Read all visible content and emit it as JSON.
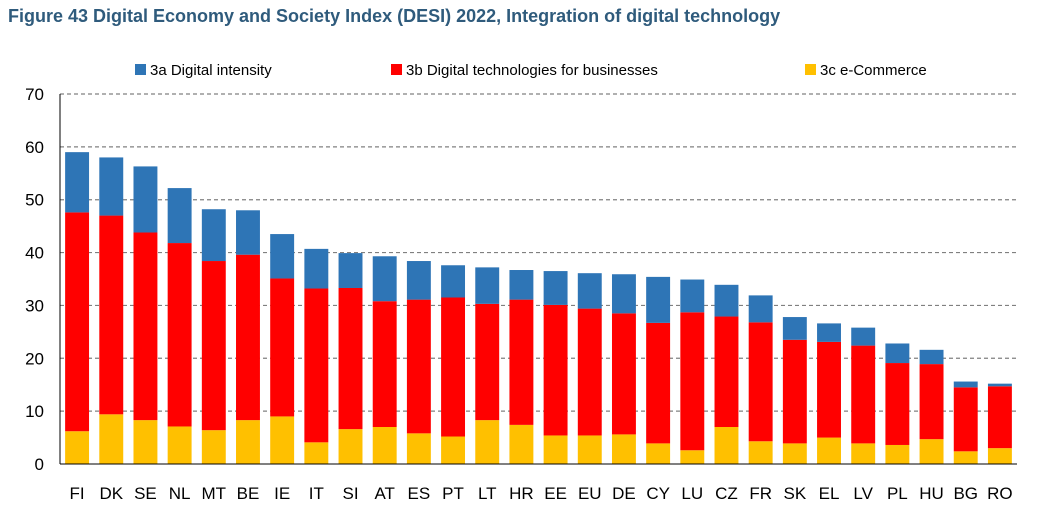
{
  "figure_title": "Figure 43 Digital Economy and Society Index (DESI) 2022, Integration of digital technology",
  "colors": {
    "digital_intensity": "#2E75B6",
    "digital_technologies": "#FF0000",
    "ecommerce": "#FFC000",
    "grid": "#808080",
    "axis": "#000000",
    "title": "#2F5B7C"
  },
  "chart_data": {
    "type": "bar",
    "stacked": true,
    "title": "Figure 43 Digital Economy and Society Index (DESI) 2022, Integration of digital technology",
    "xlabel": "",
    "ylabel": "",
    "ylim": [
      0,
      70
    ],
    "yticks": [
      0,
      10,
      20,
      30,
      40,
      50,
      60,
      70
    ],
    "grid": "horizontal dashed",
    "legend_position": "top",
    "categories": [
      "FI",
      "DK",
      "SE",
      "NL",
      "MT",
      "BE",
      "IE",
      "IT",
      "SI",
      "AT",
      "ES",
      "PT",
      "LT",
      "HR",
      "EE",
      "EU",
      "DE",
      "CY",
      "LU",
      "CZ",
      "FR",
      "SK",
      "EL",
      "LV",
      "PL",
      "HU",
      "BG",
      "RO"
    ],
    "series": [
      {
        "name": "3c e-Commerce",
        "color_key": "ecommerce",
        "values": [
          6.2,
          9.4,
          8.3,
          7.1,
          6.4,
          8.3,
          9.0,
          4.1,
          6.6,
          7.0,
          5.8,
          5.2,
          8.3,
          7.4,
          5.4,
          5.4,
          5.6,
          3.9,
          2.6,
          7.0,
          4.3,
          3.9,
          5.0,
          3.9,
          3.6,
          4.7,
          2.4,
          3.0
        ]
      },
      {
        "name": "3b Digital technologies for businesses",
        "color_key": "digital_technologies",
        "values": [
          41.4,
          37.6,
          35.5,
          34.7,
          32.0,
          31.3,
          26.1,
          29.1,
          26.7,
          23.8,
          25.3,
          26.3,
          22.0,
          23.7,
          24.7,
          24.0,
          22.9,
          22.8,
          26.1,
          20.9,
          22.5,
          19.6,
          18.1,
          18.5,
          15.5,
          14.2,
          12.1,
          11.7
        ]
      },
      {
        "name": "3a Digital intensity",
        "color_key": "digital_intensity",
        "values": [
          11.4,
          11.0,
          12.5,
          10.4,
          9.8,
          8.4,
          8.4,
          7.5,
          6.6,
          8.5,
          7.3,
          6.1,
          6.9,
          5.6,
          6.4,
          6.7,
          7.4,
          8.7,
          6.2,
          6.0,
          5.1,
          4.3,
          3.5,
          3.4,
          3.7,
          2.7,
          1.1,
          0.5
        ]
      }
    ],
    "legend": [
      "3a Digital intensity",
      "3b Digital technologies for businesses",
      "3c e-Commerce"
    ]
  }
}
